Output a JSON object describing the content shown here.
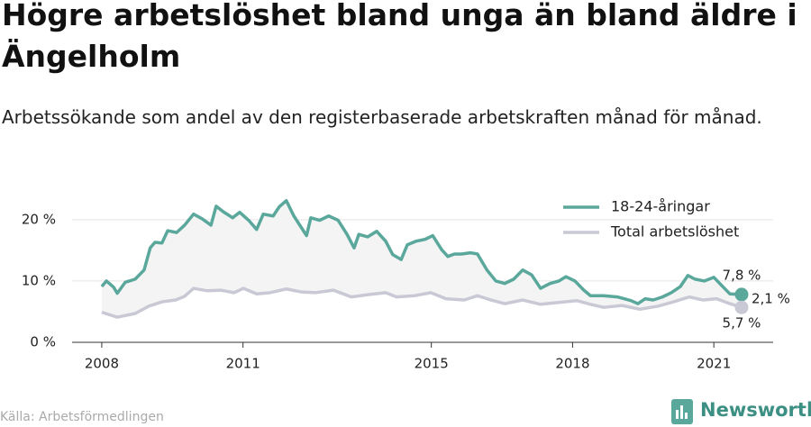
{
  "chart_data": {
    "type": "line",
    "title": "Högre arbetslöshet bland unga än bland äldre i Ängelholm",
    "subtitle": "Arbetssökande som andel av den registerbaserade arbetskraften månad för månad.",
    "source": "Källa: Arbetsförmedlingen",
    "brand": "Newsworthy",
    "xlim": [
      2007.37,
      2022.26
    ],
    "xticks": [
      2008,
      2011,
      2015,
      2018,
      2021
    ],
    "ylim": [
      0,
      23.5
    ],
    "yticks": [
      {
        "value": 0,
        "label": "0 %"
      },
      {
        "value": 10,
        "label": "10 %"
      },
      {
        "value": 20,
        "label": "20 %"
      }
    ],
    "grid": true,
    "legend": "top-right",
    "difference": {
      "value": 2.1,
      "label": "2,1 %"
    },
    "series": [
      {
        "name": "18-24-åringar",
        "color": "#5aa79b",
        "end_label": "7,8 %",
        "x": [
          2008.0,
          2008.1,
          2008.25,
          2008.33,
          2008.5,
          2008.71,
          2008.9,
          2009.03,
          2009.13,
          2009.28,
          2009.4,
          2009.59,
          2009.76,
          2009.95,
          2010.14,
          2010.32,
          2010.43,
          2010.58,
          2010.78,
          2010.93,
          2011.12,
          2011.29,
          2011.43,
          2011.64,
          2011.77,
          2011.92,
          2012.08,
          2012.35,
          2012.44,
          2012.63,
          2012.82,
          2013.02,
          2013.21,
          2013.36,
          2013.46,
          2013.65,
          2013.84,
          2014.03,
          2014.18,
          2014.36,
          2014.49,
          2014.68,
          2014.87,
          2015.03,
          2015.22,
          2015.35,
          2015.49,
          2015.64,
          2015.83,
          2015.98,
          2016.18,
          2016.37,
          2016.56,
          2016.75,
          2016.94,
          2017.13,
          2017.32,
          2017.52,
          2017.71,
          2017.86,
          2018.05,
          2018.24,
          2018.38,
          2018.66,
          2018.95,
          2019.24,
          2019.39,
          2019.54,
          2019.71,
          2019.91,
          2020.1,
          2020.29,
          2020.45,
          2020.6,
          2020.8,
          2021.0,
          2021.15,
          2021.34,
          2021.59
        ],
        "values": [
          9.1,
          10,
          9,
          8,
          9.8,
          10.3,
          11.8,
          15.4,
          16.3,
          16.2,
          18.2,
          17.9,
          19.1,
          20.9,
          20.1,
          19.1,
          22.2,
          21.3,
          20.3,
          21.2,
          19.9,
          18.4,
          20.9,
          20.6,
          22.1,
          23.1,
          20.6,
          17.4,
          20.3,
          19.9,
          20.6,
          19.9,
          17.6,
          15.4,
          17.6,
          17.2,
          18.1,
          16.5,
          14.3,
          13.5,
          15.9,
          16.5,
          16.8,
          17.4,
          15.1,
          14,
          14.4,
          14.4,
          14.6,
          14.4,
          11.8,
          10,
          9.6,
          10.3,
          11.8,
          11,
          8.8,
          9.6,
          10,
          10.7,
          10,
          8.5,
          7.6,
          7.6,
          7.4,
          6.8,
          6.3,
          7.1,
          6.9,
          7.4,
          8.1,
          9.1,
          10.9,
          10.3,
          10,
          10.6,
          9.4,
          7.9,
          7.8
        ]
      },
      {
        "name": "Total arbetslöshet",
        "color": "#c9c9d6",
        "end_label": "5,7 %",
        "x": [
          2008.0,
          2008.33,
          2008.71,
          2009.0,
          2009.28,
          2009.57,
          2009.76,
          2009.95,
          2010.24,
          2010.53,
          2010.81,
          2011.01,
          2011.29,
          2011.58,
          2011.92,
          2012.25,
          2012.54,
          2012.92,
          2013.3,
          2013.69,
          2014.03,
          2014.26,
          2014.64,
          2014.99,
          2015.31,
          2015.7,
          2015.98,
          2016.27,
          2016.56,
          2016.94,
          2017.32,
          2017.71,
          2018.09,
          2018.38,
          2018.66,
          2019.05,
          2019.43,
          2019.82,
          2020.1,
          2020.48,
          2020.77,
          2021.06,
          2021.34,
          2021.59
        ],
        "values": [
          4.9,
          4.1,
          4.7,
          5.9,
          6.6,
          6.9,
          7.5,
          8.8,
          8.4,
          8.5,
          8.1,
          8.8,
          7.9,
          8.1,
          8.7,
          8.2,
          8.1,
          8.5,
          7.4,
          7.8,
          8.1,
          7.4,
          7.6,
          8.1,
          7.1,
          6.9,
          7.6,
          6.9,
          6.3,
          6.9,
          6.2,
          6.5,
          6.8,
          6.2,
          5.7,
          6.0,
          5.4,
          5.9,
          6.5,
          7.4,
          6.9,
          7.1,
          6.3,
          5.7
        ]
      }
    ]
  }
}
